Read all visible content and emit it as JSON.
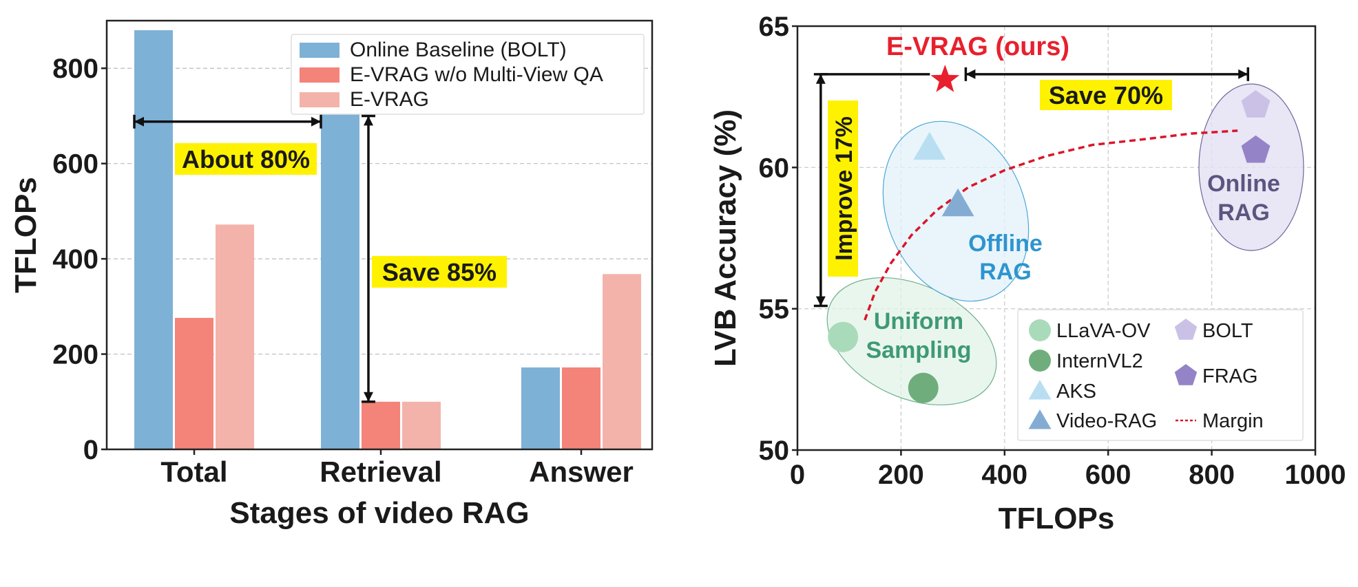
{
  "chart_data": [
    {
      "type": "bar",
      "xlabel": "Stages of video RAG",
      "ylabel": "TFLOPs",
      "categories": [
        "Total",
        "Retrieval",
        "Answer"
      ],
      "ylim": [
        0,
        900
      ],
      "yticks": [
        0,
        200,
        400,
        600,
        800
      ],
      "grid": "horizontal-dashed",
      "legend_position": "top-right",
      "series": [
        {
          "name": "Online Baseline (BOLT)",
          "color": "#7eb1d6",
          "values": [
            880,
            705,
            172
          ]
        },
        {
          "name": "E-VRAG w/o Multi-View QA",
          "color": "#f4837a",
          "values": [
            276,
            100,
            172
          ]
        },
        {
          "name": "E-VRAG",
          "color": "#f4b3aa",
          "values": [
            472,
            100,
            368
          ]
        }
      ],
      "annotations": [
        {
          "text": "About 80%",
          "kind": "horizontal-arrow",
          "from_x": "Total",
          "to_x": "Retrieval",
          "y": 688
        },
        {
          "text": "Save 85%",
          "kind": "vertical-arrow",
          "x": "Retrieval",
          "from_y": 700,
          "to_y": 100,
          "label_y": 390
        }
      ]
    },
    {
      "type": "scatter",
      "xlabel": "TFLOPs",
      "ylabel": "LVB Accuracy (%)",
      "xlim": [
        0,
        1000
      ],
      "ylim": [
        50,
        65
      ],
      "xticks": [
        0,
        200,
        400,
        600,
        800,
        1000
      ],
      "yticks": [
        50,
        55,
        60,
        65
      ],
      "grid": "dashed",
      "legend_position": "bottom-right",
      "series": [
        {
          "name": "LLaVA-OV",
          "marker": "circle",
          "color": "#a9dbbb",
          "x": [
            88
          ],
          "y": [
            54.0
          ]
        },
        {
          "name": "InternVL2",
          "marker": "circle",
          "color": "#6fae7c",
          "x": [
            243
          ],
          "y": [
            52.2
          ]
        },
        {
          "name": "AKS",
          "marker": "triangle",
          "color": "#b9def2",
          "x": [
            255
          ],
          "y": [
            60.7
          ]
        },
        {
          "name": "Video-RAG",
          "marker": "triangle",
          "color": "#84acd3",
          "x": [
            310
          ],
          "y": [
            58.7
          ]
        },
        {
          "name": "BOLT",
          "marker": "pentagon",
          "color": "#cbc1e6",
          "x": [
            885
          ],
          "y": [
            62.2
          ]
        },
        {
          "name": "FRAG",
          "marker": "pentagon",
          "color": "#9483c6",
          "x": [
            885
          ],
          "y": [
            60.6
          ]
        },
        {
          "name": "Margin",
          "marker": "dotted-line",
          "color": "#d9162a",
          "x": [
            130,
            150,
            180,
            220,
            270,
            330,
            400,
            480,
            570,
            670,
            760,
            850
          ],
          "y": [
            54.6,
            55.6,
            56.6,
            57.6,
            58.5,
            59.3,
            59.9,
            60.4,
            60.8,
            61.0,
            61.2,
            61.3
          ]
        }
      ],
      "highlight": {
        "label": "E-VRAG (ours)",
        "marker": "star",
        "color": "#e8202d",
        "x": 285,
        "y": 63.1
      },
      "regions": [
        {
          "label_lines": [
            "Uniform",
            "Sampling"
          ],
          "color": "#3f9a74"
        },
        {
          "label_lines": [
            "Offline",
            "RAG"
          ],
          "color": "#2e94cf"
        },
        {
          "label_lines": [
            "Online",
            "RAG"
          ],
          "color": "#5b5580"
        }
      ],
      "annotations": [
        {
          "text": "Save 70%",
          "kind": "horizontal-arrow",
          "from_x": 325,
          "to_x": 870,
          "y": 63.3
        },
        {
          "text": "Improve 17%",
          "kind": "vertical-arrow",
          "x": 45,
          "from_y": 63.3,
          "to_y": 55.1
        }
      ]
    }
  ]
}
